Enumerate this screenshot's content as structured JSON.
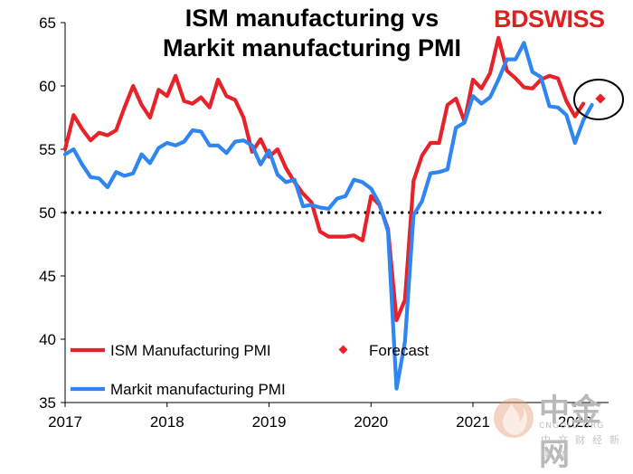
{
  "title_line1": "ISM manufacturing vs",
  "title_line2": "Markit manufacturing PMI",
  "brand_part1": "BD",
  "brand_part2": "SWISS",
  "watermark": {
    "main": "中金网",
    "sub": "CNGOLD.ORG",
    "sub2": "中文财经新媒体"
  },
  "chart_data": {
    "type": "line",
    "ylim": [
      35,
      65
    ],
    "yticks": [
      35,
      40,
      45,
      50,
      55,
      60,
      65
    ],
    "xlim": [
      2017,
      2022.33
    ],
    "xticks": [
      "2017",
      "2018",
      "2019",
      "2020",
      "2021",
      "2022"
    ],
    "reference_line": 50,
    "colors": {
      "ism": "#e8222a",
      "markit": "#2f86f0",
      "forecast": "#e8222a",
      "ref": "#000000"
    },
    "series": [
      {
        "name": "ISM Manufacturing PMI",
        "x": [
          2017.0,
          2017.083,
          2017.167,
          2017.25,
          2017.333,
          2017.417,
          2017.5,
          2017.583,
          2017.667,
          2017.75,
          2017.833,
          2017.917,
          2018.0,
          2018.083,
          2018.167,
          2018.25,
          2018.333,
          2018.417,
          2018.5,
          2018.583,
          2018.667,
          2018.75,
          2018.833,
          2018.917,
          2019.0,
          2019.083,
          2019.167,
          2019.25,
          2019.333,
          2019.417,
          2019.5,
          2019.583,
          2019.667,
          2019.75,
          2019.833,
          2019.917,
          2020.0,
          2020.083,
          2020.167,
          2020.25,
          2020.333,
          2020.417,
          2020.5,
          2020.583,
          2020.667,
          2020.75,
          2020.833,
          2020.917,
          2021.0,
          2021.083,
          2021.167,
          2021.25,
          2021.333,
          2021.417,
          2021.5,
          2021.583,
          2021.667,
          2021.75,
          2021.833,
          2021.917,
          2022.0,
          2022.083
        ],
        "values": [
          55.0,
          57.7,
          56.6,
          55.7,
          56.3,
          56.1,
          56.5,
          58.3,
          60.0,
          58.5,
          57.5,
          59.7,
          59.2,
          60.8,
          58.8,
          58.6,
          59.1,
          58.3,
          60.5,
          59.2,
          58.9,
          57.5,
          54.8,
          55.8,
          54.4,
          55.0,
          53.5,
          52.4,
          51.5,
          50.8,
          48.5,
          48.1,
          48.1,
          48.1,
          48.2,
          47.8,
          51.3,
          50.6,
          48.7,
          41.5,
          43.1,
          52.5,
          54.5,
          55.5,
          55.5,
          58.5,
          59.0,
          57.2,
          60.5,
          59.8,
          61.0,
          63.8,
          61.2,
          60.6,
          59.9,
          59.8,
          60.5,
          60.8,
          60.6,
          58.8,
          57.6,
          58.6
        ]
      },
      {
        "name": "Markit manufacturing PMI",
        "x": [
          2017.0,
          2017.083,
          2017.167,
          2017.25,
          2017.333,
          2017.417,
          2017.5,
          2017.583,
          2017.667,
          2017.75,
          2017.833,
          2017.917,
          2018.0,
          2018.083,
          2018.167,
          2018.25,
          2018.333,
          2018.417,
          2018.5,
          2018.583,
          2018.667,
          2018.75,
          2018.833,
          2018.917,
          2019.0,
          2019.083,
          2019.167,
          2019.25,
          2019.333,
          2019.417,
          2019.5,
          2019.583,
          2019.667,
          2019.75,
          2019.833,
          2019.917,
          2020.0,
          2020.083,
          2020.167,
          2020.25,
          2020.333,
          2020.417,
          2020.5,
          2020.583,
          2020.667,
          2020.75,
          2020.833,
          2020.917,
          2021.0,
          2021.083,
          2021.167,
          2021.25,
          2021.333,
          2021.417,
          2021.5,
          2021.583,
          2021.667,
          2021.75,
          2021.833,
          2021.917,
          2022.0,
          2022.083,
          2022.167
        ],
        "values": [
          54.6,
          55.0,
          53.8,
          52.8,
          52.7,
          52.0,
          53.2,
          52.9,
          53.1,
          54.6,
          53.9,
          55.1,
          55.5,
          55.3,
          55.6,
          56.5,
          56.4,
          55.3,
          55.3,
          54.7,
          55.6,
          55.7,
          55.3,
          53.8,
          54.9,
          53.0,
          52.4,
          52.6,
          50.5,
          50.6,
          50.4,
          50.3,
          51.1,
          51.3,
          52.6,
          52.4,
          51.9,
          50.7,
          48.5,
          36.1,
          39.8,
          49.8,
          50.9,
          53.1,
          53.2,
          53.4,
          56.7,
          57.1,
          59.2,
          58.6,
          59.1,
          60.5,
          62.1,
          62.1,
          63.4,
          61.1,
          60.7,
          58.4,
          58.3,
          57.7,
          55.5,
          57.3,
          58.5
        ]
      }
    ],
    "forecast": {
      "name": "Forecast",
      "x": 2022.25,
      "value": 59.0
    },
    "legend": [
      "ISM Manufacturing PMI",
      "Forecast",
      "Markit manufacturing PMI"
    ]
  }
}
